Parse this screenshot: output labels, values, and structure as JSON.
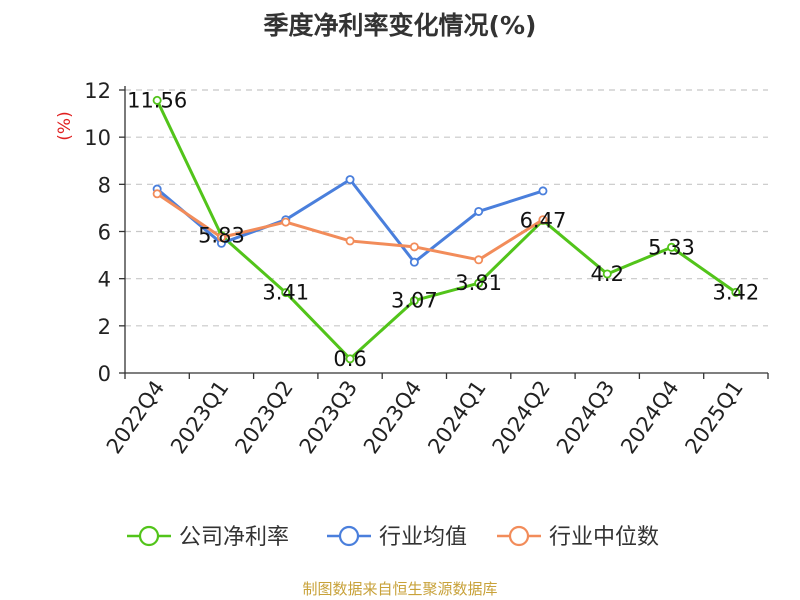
{
  "title": "季度净利率变化情况(%)",
  "source": "制图数据来自恒生聚源数据库",
  "chart_data": {
    "type": "line",
    "title": "季度净利率变化情况(%)",
    "ylabel": "(%)",
    "ylim": [
      0,
      12
    ],
    "yticks": [
      0,
      2,
      4,
      6,
      8,
      10,
      12
    ],
    "grid": true,
    "legend_position": "bottom",
    "categories": [
      "2022Q4",
      "2023Q1",
      "2023Q2",
      "2023Q3",
      "2023Q4",
      "2024Q1",
      "2024Q2",
      "2024Q3",
      "2024Q4",
      "2025Q1"
    ],
    "series": [
      {
        "name": "公司净利率",
        "color": "#52c41a",
        "values": [
          11.56,
          5.83,
          3.41,
          0.6,
          3.07,
          3.81,
          6.47,
          4.2,
          5.33,
          3.42
        ],
        "labels": [
          "11.56",
          "5.83",
          "3.41",
          "0.6",
          "3.07",
          "3.81",
          "6.47",
          "4.2",
          "5.33",
          "3.42"
        ]
      },
      {
        "name": "行业均值",
        "color": "#4a7fdc",
        "values": [
          7.8,
          5.5,
          6.5,
          8.2,
          4.7,
          6.85,
          7.72,
          null,
          null,
          null
        ]
      },
      {
        "name": "行业中位数",
        "color": "#f28c5a",
        "values": [
          7.6,
          5.75,
          6.4,
          5.6,
          5.35,
          4.8,
          6.5,
          null,
          null,
          null
        ]
      }
    ]
  }
}
